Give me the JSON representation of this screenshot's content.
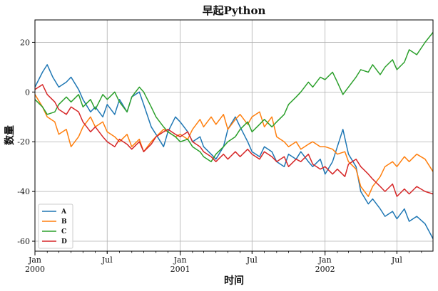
{
  "chart_data": {
    "type": "line",
    "title": "早起Python",
    "xlabel": "时间",
    "ylabel": "数量",
    "ylim": [
      -64,
      29
    ],
    "xlim": [
      "2000-01-01",
      "2002-09-30"
    ],
    "grid": true,
    "legend_position": "lower-left",
    "y_ticks": [
      20,
      0,
      -20,
      -40,
      -60
    ],
    "y_tick_labels": [
      "20",
      "0",
      "-20",
      "-40",
      "-60"
    ],
    "x_ticks": [
      {
        "date": "2000-01-01",
        "label": "Jan",
        "sublabel": "2000",
        "major": true
      },
      {
        "date": "2000-07-01",
        "label": "Jul",
        "sublabel": "",
        "major": false
      },
      {
        "date": "2001-01-01",
        "label": "Jan",
        "sublabel": "2001",
        "major": true
      },
      {
        "date": "2001-07-01",
        "label": "Jul",
        "sublabel": "",
        "major": false
      },
      {
        "date": "2002-01-01",
        "label": "Jan",
        "sublabel": "2002",
        "major": true
      },
      {
        "date": "2002-07-01",
        "label": "Jul",
        "sublabel": "",
        "major": false
      }
    ],
    "series": [
      {
        "name": "A",
        "color": "#1f77b4",
        "points": [
          [
            "2000-01-01",
            2
          ],
          [
            "2000-01-20",
            8
          ],
          [
            "2000-02-01",
            11
          ],
          [
            "2000-02-15",
            6
          ],
          [
            "2000-03-01",
            2
          ],
          [
            "2000-03-20",
            4
          ],
          [
            "2000-04-01",
            6
          ],
          [
            "2000-04-20",
            1
          ],
          [
            "2000-05-01",
            -3
          ],
          [
            "2000-05-20",
            -8
          ],
          [
            "2000-06-01",
            -6
          ],
          [
            "2000-06-20",
            -10
          ],
          [
            "2000-07-01",
            -5
          ],
          [
            "2000-07-20",
            -9
          ],
          [
            "2000-08-01",
            -3
          ],
          [
            "2000-08-20",
            -8
          ],
          [
            "2000-09-01",
            -2
          ],
          [
            "2000-09-20",
            0
          ],
          [
            "2000-10-01",
            -5
          ],
          [
            "2000-10-20",
            -14
          ],
          [
            "2000-11-01",
            -17
          ],
          [
            "2000-11-20",
            -22
          ],
          [
            "2000-12-01",
            -16
          ],
          [
            "2000-12-20",
            -10
          ],
          [
            "2001-01-01",
            -12
          ],
          [
            "2001-01-20",
            -16
          ],
          [
            "2001-02-01",
            -20
          ],
          [
            "2001-02-20",
            -18
          ],
          [
            "2001-03-01",
            -22
          ],
          [
            "2001-03-20",
            -25
          ],
          [
            "2001-04-01",
            -27
          ],
          [
            "2001-04-20",
            -22
          ],
          [
            "2001-05-01",
            -15
          ],
          [
            "2001-05-20",
            -10
          ],
          [
            "2001-06-01",
            -14
          ],
          [
            "2001-06-20",
            -20
          ],
          [
            "2001-07-01",
            -24
          ],
          [
            "2001-07-20",
            -26
          ],
          [
            "2001-08-01",
            -22
          ],
          [
            "2001-08-20",
            -24
          ],
          [
            "2001-09-01",
            -28
          ],
          [
            "2001-09-20",
            -30
          ],
          [
            "2001-10-01",
            -25
          ],
          [
            "2001-10-20",
            -27
          ],
          [
            "2001-11-01",
            -24
          ],
          [
            "2001-11-20",
            -28
          ],
          [
            "2001-12-01",
            -30
          ],
          [
            "2001-12-20",
            -27
          ],
          [
            "2002-01-01",
            -33
          ],
          [
            "2002-01-20",
            -28
          ],
          [
            "2002-02-01",
            -22
          ],
          [
            "2002-02-15",
            -15
          ],
          [
            "2002-03-01",
            -25
          ],
          [
            "2002-03-20",
            -30
          ],
          [
            "2002-04-01",
            -40
          ],
          [
            "2002-04-20",
            -45
          ],
          [
            "2002-05-01",
            -43
          ],
          [
            "2002-05-20",
            -47
          ],
          [
            "2002-06-01",
            -50
          ],
          [
            "2002-06-20",
            -48
          ],
          [
            "2002-07-01",
            -51
          ],
          [
            "2002-07-20",
            -47
          ],
          [
            "2002-08-01",
            -52
          ],
          [
            "2002-08-20",
            -50
          ],
          [
            "2002-09-10",
            -53
          ],
          [
            "2002-09-30",
            -59
          ]
        ]
      },
      {
        "name": "B",
        "color": "#ff7f0e",
        "points": [
          [
            "2000-01-01",
            -1
          ],
          [
            "2000-01-20",
            -6
          ],
          [
            "2000-02-01",
            -10
          ],
          [
            "2000-02-20",
            -12
          ],
          [
            "2000-03-01",
            -17
          ],
          [
            "2000-03-20",
            -15
          ],
          [
            "2000-04-01",
            -22
          ],
          [
            "2000-04-20",
            -18
          ],
          [
            "2000-05-01",
            -14
          ],
          [
            "2000-05-20",
            -10
          ],
          [
            "2000-06-01",
            -14
          ],
          [
            "2000-06-20",
            -12
          ],
          [
            "2000-07-01",
            -16
          ],
          [
            "2000-07-20",
            -18
          ],
          [
            "2000-08-01",
            -20
          ],
          [
            "2000-08-20",
            -17
          ],
          [
            "2000-09-01",
            -22
          ],
          [
            "2000-09-20",
            -19
          ],
          [
            "2000-10-01",
            -24
          ],
          [
            "2000-10-20",
            -20
          ],
          [
            "2000-11-01",
            -18
          ],
          [
            "2000-11-20",
            -15
          ],
          [
            "2000-12-01",
            -16
          ],
          [
            "2000-12-20",
            -18
          ],
          [
            "2001-01-01",
            -17
          ],
          [
            "2001-01-20",
            -19
          ],
          [
            "2001-02-01",
            -15
          ],
          [
            "2001-02-20",
            -11
          ],
          [
            "2001-03-01",
            -14
          ],
          [
            "2001-03-20",
            -10
          ],
          [
            "2001-04-01",
            -13
          ],
          [
            "2001-04-20",
            -9
          ],
          [
            "2001-05-01",
            -15
          ],
          [
            "2001-05-20",
            -11
          ],
          [
            "2001-06-01",
            -9
          ],
          [
            "2001-06-20",
            -13
          ],
          [
            "2001-07-01",
            -10
          ],
          [
            "2001-07-20",
            -8
          ],
          [
            "2001-08-01",
            -14
          ],
          [
            "2001-08-20",
            -10
          ],
          [
            "2001-09-01",
            -18
          ],
          [
            "2001-09-20",
            -20
          ],
          [
            "2001-10-01",
            -22
          ],
          [
            "2001-10-20",
            -20
          ],
          [
            "2001-11-01",
            -23
          ],
          [
            "2001-11-20",
            -21
          ],
          [
            "2001-12-01",
            -20
          ],
          [
            "2001-12-20",
            -22
          ],
          [
            "2002-01-01",
            -22
          ],
          [
            "2002-01-20",
            -23
          ],
          [
            "2002-02-01",
            -25
          ],
          [
            "2002-02-20",
            -24
          ],
          [
            "2002-03-01",
            -28
          ],
          [
            "2002-03-20",
            -31
          ],
          [
            "2002-04-01",
            -38
          ],
          [
            "2002-04-20",
            -42
          ],
          [
            "2002-05-01",
            -38
          ],
          [
            "2002-05-20",
            -34
          ],
          [
            "2002-06-01",
            -30
          ],
          [
            "2002-06-20",
            -28
          ],
          [
            "2002-07-01",
            -30
          ],
          [
            "2002-07-20",
            -26
          ],
          [
            "2002-08-01",
            -28
          ],
          [
            "2002-08-20",
            -25
          ],
          [
            "2002-09-10",
            -27
          ],
          [
            "2002-09-30",
            -32
          ]
        ]
      },
      {
        "name": "C",
        "color": "#2ca02c",
        "points": [
          [
            "2000-01-01",
            -3
          ],
          [
            "2000-01-20",
            -6
          ],
          [
            "2000-02-01",
            -9
          ],
          [
            "2000-02-20",
            -8
          ],
          [
            "2000-03-01",
            -5
          ],
          [
            "2000-03-20",
            -2
          ],
          [
            "2000-04-01",
            -4
          ],
          [
            "2000-04-20",
            -1
          ],
          [
            "2000-05-01",
            -6
          ],
          [
            "2000-05-20",
            -3
          ],
          [
            "2000-06-01",
            -7
          ],
          [
            "2000-06-20",
            -1
          ],
          [
            "2000-07-01",
            -3
          ],
          [
            "2000-07-20",
            0
          ],
          [
            "2000-08-01",
            -4
          ],
          [
            "2000-08-20",
            -8
          ],
          [
            "2000-09-01",
            -2
          ],
          [
            "2000-09-20",
            2
          ],
          [
            "2000-10-01",
            0
          ],
          [
            "2000-10-20",
            -6
          ],
          [
            "2000-11-01",
            -10
          ],
          [
            "2000-11-20",
            -14
          ],
          [
            "2000-12-01",
            -16
          ],
          [
            "2000-12-20",
            -18
          ],
          [
            "2001-01-01",
            -20
          ],
          [
            "2001-01-20",
            -19
          ],
          [
            "2001-02-01",
            -22
          ],
          [
            "2001-02-20",
            -24
          ],
          [
            "2001-03-01",
            -26
          ],
          [
            "2001-03-20",
            -28
          ],
          [
            "2001-04-01",
            -25
          ],
          [
            "2001-04-20",
            -22
          ],
          [
            "2001-05-01",
            -20
          ],
          [
            "2001-05-20",
            -18
          ],
          [
            "2001-06-01",
            -15
          ],
          [
            "2001-06-20",
            -12
          ],
          [
            "2001-07-01",
            -16
          ],
          [
            "2001-07-20",
            -13
          ],
          [
            "2001-08-01",
            -11
          ],
          [
            "2001-08-20",
            -14
          ],
          [
            "2001-09-01",
            -12
          ],
          [
            "2001-09-20",
            -9
          ],
          [
            "2001-10-01",
            -5
          ],
          [
            "2001-10-20",
            -2
          ],
          [
            "2001-11-01",
            0
          ],
          [
            "2001-11-20",
            4
          ],
          [
            "2001-12-01",
            2
          ],
          [
            "2001-12-20",
            6
          ],
          [
            "2002-01-01",
            5
          ],
          [
            "2002-01-20",
            8
          ],
          [
            "2002-02-01",
            4
          ],
          [
            "2002-02-15",
            -1
          ],
          [
            "2002-03-01",
            2
          ],
          [
            "2002-03-20",
            6
          ],
          [
            "2002-04-01",
            9
          ],
          [
            "2002-04-20",
            8
          ],
          [
            "2002-05-01",
            11
          ],
          [
            "2002-05-20",
            7
          ],
          [
            "2002-06-01",
            10
          ],
          [
            "2002-06-20",
            13
          ],
          [
            "2002-07-01",
            9
          ],
          [
            "2002-07-20",
            12
          ],
          [
            "2002-08-01",
            17
          ],
          [
            "2002-08-20",
            15
          ],
          [
            "2002-09-10",
            20
          ],
          [
            "2002-09-30",
            24
          ]
        ]
      },
      {
        "name": "D",
        "color": "#d62728",
        "points": [
          [
            "2000-01-01",
            1
          ],
          [
            "2000-01-20",
            3
          ],
          [
            "2000-02-01",
            -1
          ],
          [
            "2000-02-20",
            -4
          ],
          [
            "2000-03-01",
            -7
          ],
          [
            "2000-03-20",
            -9
          ],
          [
            "2000-04-01",
            -6
          ],
          [
            "2000-04-20",
            -8
          ],
          [
            "2000-05-01",
            -12
          ],
          [
            "2000-05-20",
            -16
          ],
          [
            "2000-06-01",
            -14
          ],
          [
            "2000-06-20",
            -18
          ],
          [
            "2000-07-01",
            -20
          ],
          [
            "2000-07-20",
            -22
          ],
          [
            "2000-08-01",
            -19
          ],
          [
            "2000-08-20",
            -21
          ],
          [
            "2000-09-01",
            -23
          ],
          [
            "2000-09-20",
            -20
          ],
          [
            "2000-10-01",
            -24
          ],
          [
            "2000-10-20",
            -21
          ],
          [
            "2000-11-01",
            -18
          ],
          [
            "2000-11-20",
            -16
          ],
          [
            "2000-12-01",
            -15
          ],
          [
            "2000-12-20",
            -17
          ],
          [
            "2001-01-01",
            -18
          ],
          [
            "2001-01-20",
            -16
          ],
          [
            "2001-02-01",
            -20
          ],
          [
            "2001-02-20",
            -22
          ],
          [
            "2001-03-01",
            -24
          ],
          [
            "2001-03-20",
            -26
          ],
          [
            "2001-04-01",
            -28
          ],
          [
            "2001-04-20",
            -25
          ],
          [
            "2001-05-01",
            -27
          ],
          [
            "2001-05-20",
            -24
          ],
          [
            "2001-06-01",
            -26
          ],
          [
            "2001-06-20",
            -23
          ],
          [
            "2001-07-01",
            -25
          ],
          [
            "2001-07-20",
            -27
          ],
          [
            "2001-08-01",
            -24
          ],
          [
            "2001-08-20",
            -26
          ],
          [
            "2001-09-01",
            -28
          ],
          [
            "2001-09-20",
            -26
          ],
          [
            "2001-10-01",
            -30
          ],
          [
            "2001-10-20",
            -27
          ],
          [
            "2001-11-01",
            -28
          ],
          [
            "2001-11-20",
            -25
          ],
          [
            "2001-12-01",
            -29
          ],
          [
            "2001-12-20",
            -31
          ],
          [
            "2002-01-01",
            -30
          ],
          [
            "2002-01-20",
            -33
          ],
          [
            "2002-02-01",
            -31
          ],
          [
            "2002-02-20",
            -34
          ],
          [
            "2002-03-01",
            -29
          ],
          [
            "2002-03-20",
            -27
          ],
          [
            "2002-04-01",
            -30
          ],
          [
            "2002-04-20",
            -33
          ],
          [
            "2002-05-01",
            -35
          ],
          [
            "2002-05-20",
            -38
          ],
          [
            "2002-06-01",
            -40
          ],
          [
            "2002-06-20",
            -37
          ],
          [
            "2002-07-01",
            -42
          ],
          [
            "2002-07-20",
            -39
          ],
          [
            "2002-08-01",
            -41
          ],
          [
            "2002-08-20",
            -38
          ],
          [
            "2002-09-10",
            -40
          ],
          [
            "2002-09-30",
            -41
          ]
        ]
      }
    ]
  }
}
